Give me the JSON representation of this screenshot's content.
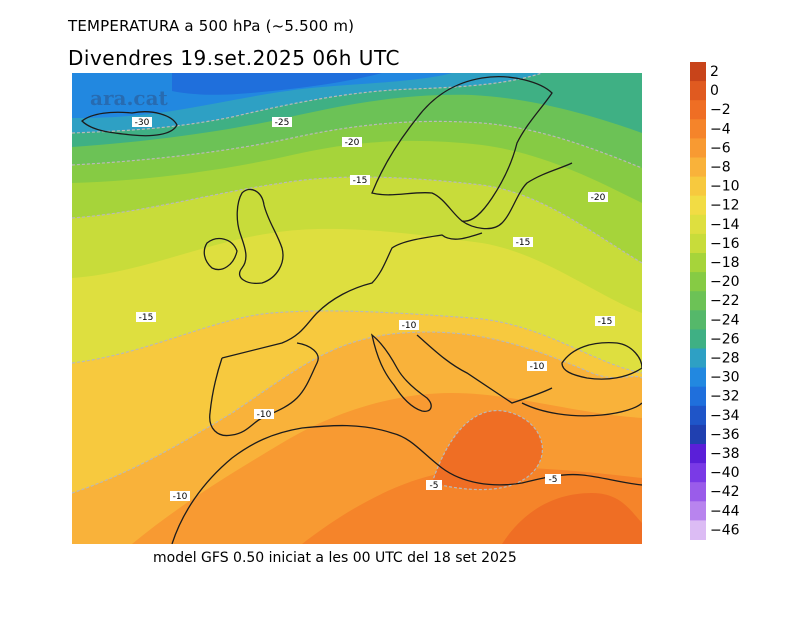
{
  "header": {
    "title": "TEMPERATURA a 500 hPa (~5.500 m)",
    "subtitle": "Divendres  19.set.2025 06h UTC"
  },
  "footer": "model GFS 0.50 iniciat a les 00 UTC del 18 set 2025",
  "watermark": "ara.cat",
  "legend": {
    "levels": [
      "2",
      "0",
      "−2",
      "−4",
      "−6",
      "−8",
      "−10",
      "−12",
      "−14",
      "−16",
      "−18",
      "−20",
      "−22",
      "−24",
      "−26",
      "−28",
      "−30",
      "−32",
      "−34",
      "−36",
      "−38",
      "−40",
      "−42",
      "−44",
      "−46"
    ],
    "colors": [
      "#c8441a",
      "#e05a20",
      "#ef6e24",
      "#f5842a",
      "#f89a32",
      "#f9b23a",
      "#f7c93e",
      "#f2dc44",
      "#dedf3f",
      "#c8dc3a",
      "#a6d43a",
      "#86cb44",
      "#6cc256",
      "#55b86a",
      "#3fb084",
      "#2ea0c4",
      "#2288e0",
      "#1f6fdc",
      "#1f55c8",
      "#2040b0",
      "#5a1fd8",
      "#7a3ae6",
      "#9a5cea",
      "#b884ee",
      "#dcbcf4"
    ]
  },
  "map": {
    "contour_labels": [
      {
        "text": "-30"
      },
      {
        "text": "-25"
      },
      {
        "text": "-20"
      },
      {
        "text": "-15"
      },
      {
        "text": "-20"
      },
      {
        "text": "-15"
      },
      {
        "text": "-15"
      },
      {
        "text": "-10"
      },
      {
        "text": "-15"
      },
      {
        "text": "-10"
      },
      {
        "text": "-10"
      },
      {
        "text": "-10"
      },
      {
        "text": "-5"
      },
      {
        "text": "-5"
      }
    ]
  }
}
